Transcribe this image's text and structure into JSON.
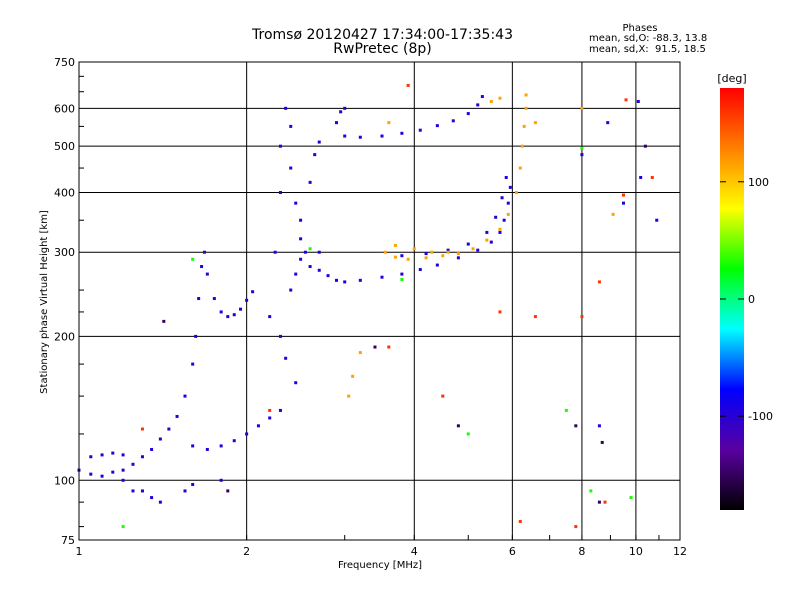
{
  "header": {
    "title": "Tromsø 20120427 17:34:00-17:35:43",
    "subtitle": "RwPretec (8p)",
    "phases_title": "Phases",
    "phases_o": "mean, sd,O: -88.3, 13.8",
    "phases_x": "mean, sd,X:  91.5, 18.5"
  },
  "chart_data": {
    "type": "scatter",
    "xlabel": "Frequency [MHz]",
    "ylabel": "Stationary phase Virtual Height [km]",
    "xscale": "log",
    "yscale": "log",
    "xlim": [
      1,
      12
    ],
    "ylim": [
      75,
      750
    ],
    "xticks": [
      1,
      2,
      4,
      6,
      8,
      10,
      12
    ],
    "yticks": [
      75,
      100,
      200,
      300,
      400,
      500,
      600,
      750
    ],
    "grid": true,
    "colorbar": {
      "label": "[deg]",
      "range": [
        -180,
        180
      ],
      "ticks": [
        100,
        0,
        -100
      ],
      "colors": [
        "#000000",
        "#5a00a0",
        "#0000ff",
        "#00ffff",
        "#00ff00",
        "#ffff00",
        "#ff8000",
        "#ff0000"
      ]
    },
    "series": [
      {
        "phase": -95,
        "points": [
          [
            1.0,
            105
          ],
          [
            1.05,
            103
          ],
          [
            1.1,
            102
          ],
          [
            1.15,
            104
          ],
          [
            1.2,
            105
          ],
          [
            1.25,
            108
          ],
          [
            1.3,
            112
          ],
          [
            1.35,
            116
          ],
          [
            1.4,
            122
          ],
          [
            1.45,
            128
          ],
          [
            1.5,
            136
          ],
          [
            1.55,
            150
          ],
          [
            1.6,
            175
          ],
          [
            1.62,
            200
          ],
          [
            1.64,
            240
          ],
          [
            1.66,
            280
          ],
          [
            1.68,
            300
          ],
          [
            1.7,
            270
          ],
          [
            1.75,
            240
          ],
          [
            1.8,
            225
          ],
          [
            1.85,
            220
          ],
          [
            1.9,
            222
          ],
          [
            1.95,
            228
          ],
          [
            2.0,
            238
          ],
          [
            2.05,
            248
          ],
          [
            1.6,
            118
          ],
          [
            1.7,
            116
          ],
          [
            1.8,
            118
          ],
          [
            1.9,
            121
          ],
          [
            2.0,
            125
          ],
          [
            2.1,
            130
          ],
          [
            2.2,
            135
          ],
          [
            2.3,
            140
          ],
          [
            1.05,
            112
          ],
          [
            1.1,
            113
          ],
          [
            1.15,
            114
          ],
          [
            1.2,
            113
          ],
          [
            1.3,
            95
          ],
          [
            1.35,
            92
          ],
          [
            1.4,
            90
          ],
          [
            1.55,
            95
          ],
          [
            1.6,
            98
          ],
          [
            2.45,
            270
          ],
          [
            2.5,
            290
          ],
          [
            2.6,
            280
          ],
          [
            2.7,
            275
          ],
          [
            2.8,
            268
          ],
          [
            2.9,
            262
          ],
          [
            3.0,
            260
          ],
          [
            3.2,
            262
          ],
          [
            3.5,
            266
          ],
          [
            3.8,
            270
          ],
          [
            4.1,
            276
          ],
          [
            4.4,
            282
          ],
          [
            4.8,
            292
          ],
          [
            5.2,
            303
          ],
          [
            5.5,
            315
          ],
          [
            5.7,
            330
          ],
          [
            5.8,
            350
          ],
          [
            5.9,
            380
          ],
          [
            5.95,
            410
          ],
          [
            3.8,
            295
          ],
          [
            4.2,
            298
          ],
          [
            4.6,
            303
          ],
          [
            5.0,
            312
          ],
          [
            5.4,
            330
          ],
          [
            5.6,
            355
          ],
          [
            5.75,
            390
          ],
          [
            5.85,
            430
          ],
          [
            3.0,
            525
          ],
          [
            3.2,
            522
          ],
          [
            3.5,
            525
          ],
          [
            3.8,
            532
          ],
          [
            4.1,
            540
          ],
          [
            4.4,
            552
          ],
          [
            4.7,
            565
          ],
          [
            5.0,
            585
          ],
          [
            5.2,
            610
          ],
          [
            5.3,
            635
          ],
          [
            2.9,
            560
          ],
          [
            2.95,
            590
          ],
          [
            3.0,
            600
          ],
          [
            8.9,
            560
          ],
          [
            10.1,
            620
          ],
          [
            8.0,
            480
          ],
          [
            10.2,
            430
          ],
          [
            2.3,
            400
          ],
          [
            2.4,
            450
          ],
          [
            2.5,
            350
          ],
          [
            2.4,
            250
          ],
          [
            2.3,
            200
          ],
          [
            2.35,
            180
          ],
          [
            2.45,
            160
          ],
          [
            2.2,
            220
          ],
          [
            2.25,
            300
          ],
          [
            2.3,
            500
          ],
          [
            2.35,
            600
          ],
          [
            2.4,
            550
          ],
          [
            2.45,
            380
          ],
          [
            2.5,
            320
          ],
          [
            2.55,
            300
          ],
          [
            2.6,
            420
          ],
          [
            2.65,
            480
          ],
          [
            2.7,
            510
          ],
          [
            8.6,
            130
          ],
          [
            10.9,
            350
          ],
          [
            9.5,
            380
          ],
          [
            1.2,
            100
          ],
          [
            1.25,
            95
          ],
          [
            1.8,
            100
          ],
          [
            2.7,
            300
          ]
        ]
      },
      {
        "phase": 115,
        "points": [
          [
            3.55,
            300
          ],
          [
            3.7,
            293
          ],
          [
            3.9,
            290
          ],
          [
            4.2,
            292
          ],
          [
            4.5,
            295
          ],
          [
            4.8,
            298
          ],
          [
            5.1,
            305
          ],
          [
            5.4,
            318
          ],
          [
            5.7,
            335
          ],
          [
            5.9,
            360
          ],
          [
            6.1,
            400
          ],
          [
            6.2,
            450
          ],
          [
            6.25,
            500
          ],
          [
            6.3,
            550
          ],
          [
            6.35,
            600
          ],
          [
            6.35,
            640
          ],
          [
            3.7,
            310
          ],
          [
            4.0,
            305
          ],
          [
            4.3,
            300
          ],
          [
            4.6,
            300
          ],
          [
            3.05,
            150
          ],
          [
            3.1,
            165
          ],
          [
            3.2,
            185
          ],
          [
            5.5,
            620
          ],
          [
            5.7,
            630
          ],
          [
            3.6,
            560
          ],
          [
            9.1,
            360
          ],
          [
            8.0,
            600
          ],
          [
            6.6,
            560
          ]
        ]
      },
      {
        "phase": 160,
        "points": [
          [
            3.9,
            670
          ],
          [
            4.5,
            150
          ],
          [
            6.6,
            220
          ],
          [
            5.7,
            225
          ],
          [
            8.8,
            90
          ],
          [
            9.5,
            395
          ],
          [
            9.6,
            625
          ],
          [
            6.2,
            82
          ],
          [
            8.0,
            220
          ],
          [
            7.8,
            80
          ],
          [
            2.2,
            140
          ],
          [
            3.6,
            190
          ],
          [
            10.7,
            430
          ],
          [
            8.6,
            260
          ],
          [
            1.3,
            128
          ]
        ]
      },
      {
        "phase": -150,
        "points": [
          [
            1.42,
            215
          ],
          [
            8.6,
            90
          ],
          [
            7.8,
            130
          ],
          [
            8.7,
            120
          ],
          [
            1.85,
            95
          ],
          [
            10.4,
            500
          ],
          [
            3.4,
            190
          ],
          [
            4.8,
            130
          ]
        ]
      },
      {
        "phase": 30,
        "points": [
          [
            9.8,
            92
          ],
          [
            5.0,
            125
          ],
          [
            3.8,
            263
          ],
          [
            7.5,
            140
          ],
          [
            8.3,
            95
          ],
          [
            1.2,
            80
          ],
          [
            1.6,
            290
          ],
          [
            2.6,
            305
          ],
          [
            8.0,
            495
          ]
        ]
      }
    ]
  }
}
